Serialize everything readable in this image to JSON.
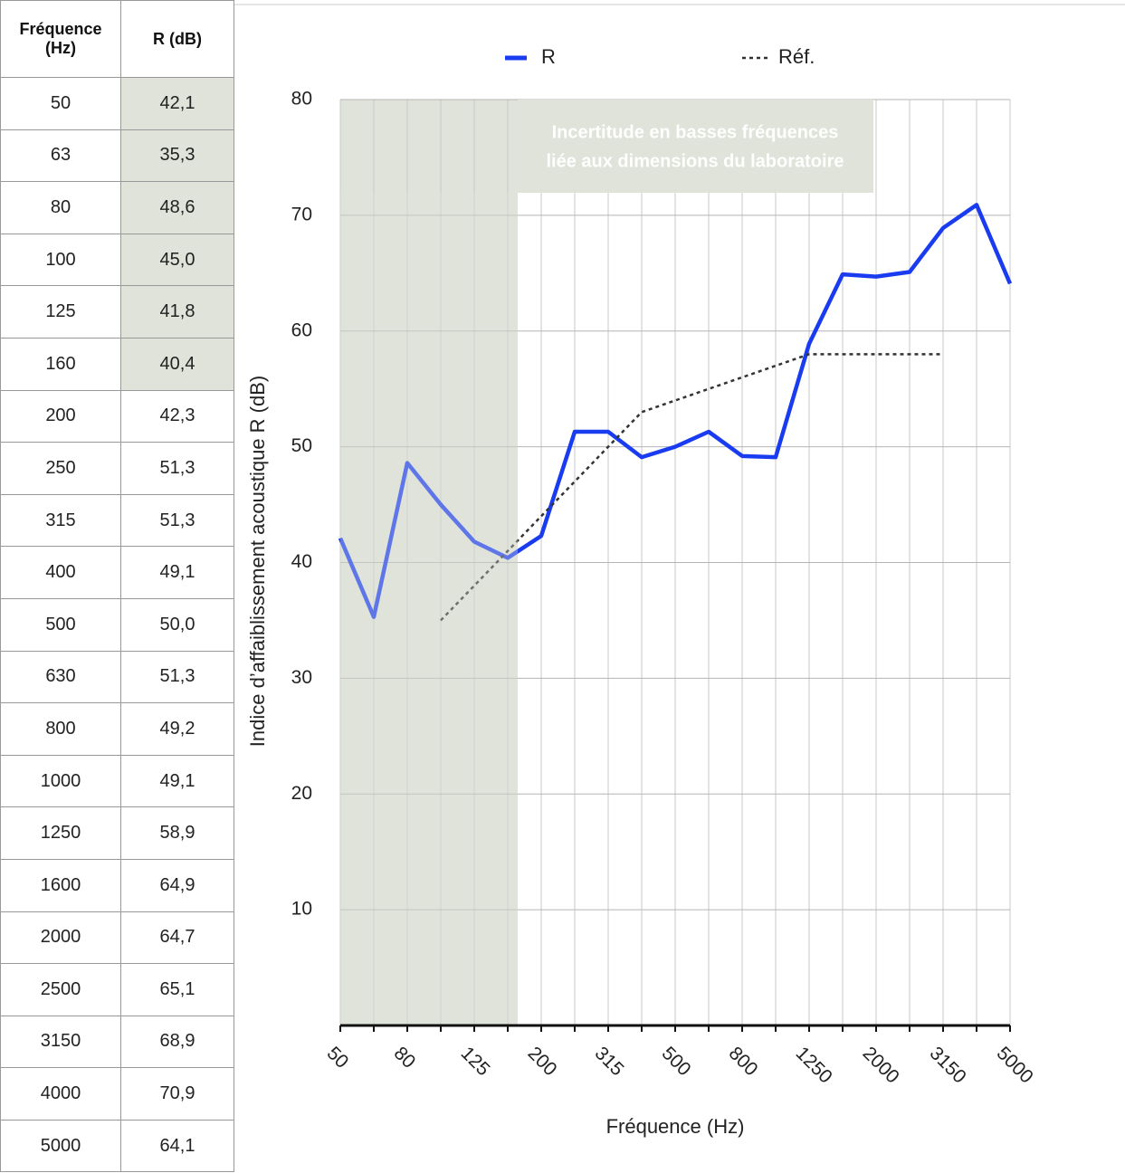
{
  "table": {
    "header": [
      "Fréquence (Hz)",
      "R (dB)"
    ],
    "rows": [
      [
        "50",
        "42,1"
      ],
      [
        "63",
        "35,3"
      ],
      [
        "80",
        "48,6"
      ],
      [
        "100",
        "45,0"
      ],
      [
        "125",
        "41,8"
      ],
      [
        "160",
        "40,4"
      ],
      [
        "200",
        "42,3"
      ],
      [
        "250",
        "51,3"
      ],
      [
        "315",
        "51,3"
      ],
      [
        "400",
        "49,1"
      ],
      [
        "500",
        "50,0"
      ],
      [
        "630",
        "51,3"
      ],
      [
        "800",
        "49,2"
      ],
      [
        "1000",
        "49,1"
      ],
      [
        "1250",
        "58,9"
      ],
      [
        "1600",
        "64,9"
      ],
      [
        "2000",
        "64,7"
      ],
      [
        "2500",
        "65,1"
      ],
      [
        "3150",
        "68,9"
      ],
      [
        "4000",
        "70,9"
      ],
      [
        "5000",
        "64,1"
      ]
    ]
  },
  "chart_data": {
    "type": "line",
    "categories": [
      "50",
      null,
      "80",
      null,
      "125",
      null,
      "200",
      null,
      "315",
      null,
      "500",
      null,
      "800",
      null,
      "1250",
      null,
      "2000",
      null,
      "3150",
      null,
      "5000"
    ],
    "series": [
      {
        "name": "R",
        "color": "#1a3cf0",
        "style": "solid",
        "values": [
          42.1,
          35.3,
          48.6,
          45.0,
          41.8,
          40.4,
          42.3,
          51.3,
          51.3,
          49.1,
          50.0,
          51.3,
          49.2,
          49.1,
          58.9,
          64.9,
          64.7,
          65.1,
          68.9,
          70.9,
          64.1
        ]
      },
      {
        "name": "Réf.",
        "color": "#333333",
        "style": "dotted",
        "values": [
          null,
          null,
          null,
          35,
          38,
          41,
          44,
          47,
          50,
          53,
          54,
          55,
          56,
          57,
          58,
          58,
          58,
          58,
          58,
          null,
          null
        ]
      }
    ],
    "ylim": [
      0,
      80
    ],
    "yticks": [
      10,
      20,
      30,
      40,
      50,
      60,
      70,
      80
    ],
    "grid": true,
    "legend": "top",
    "xlabel": "Fréquence (Hz)",
    "ylabel": "Indice d’affaiblissement acoustique R (dB)",
    "annotation": [
      "Incertitude en basses fréquences",
      "liée aux dimensions du laboratoire"
    ]
  }
}
